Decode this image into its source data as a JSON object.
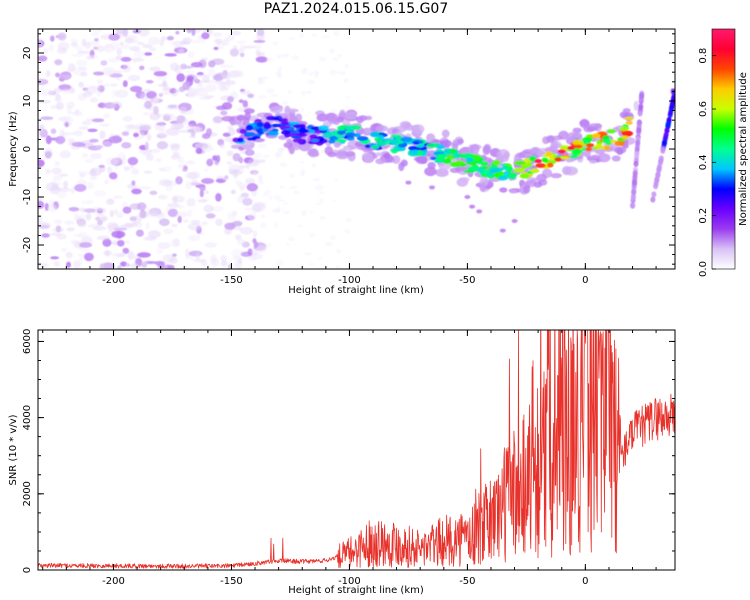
{
  "title": "PAZ1.2024.015.06.15.G07",
  "chart_data": [
    {
      "type": "heatmap",
      "xlabel": "Height of straight line (km)",
      "ylabel": "Frequency (Hz)",
      "xlim": [
        -232,
        38
      ],
      "ylim": [
        -25,
        25
      ],
      "x_ticks": [
        "-200",
        "-150",
        "-100",
        "-50",
        "0"
      ],
      "y_ticks": [
        "20",
        "10",
        "0",
        "-10",
        "-20"
      ],
      "colorbar": {
        "label": "Normalized spectral amplitude",
        "range": [
          0.0,
          0.9
        ],
        "ticks": [
          "0.0",
          "0.2",
          "0.4",
          "0.6",
          "0.8"
        ],
        "colormap": [
          "#ffffff",
          "#d9c2f5",
          "#9b3cf0",
          "#6a00ff",
          "#0000ff",
          "#00c8ff",
          "#00ff90",
          "#00ff00",
          "#c8ff00",
          "#ffcc00",
          "#ff4400",
          "#ff0033",
          "#ff1a6e"
        ]
      },
      "ridge": [
        {
          "x": -150,
          "y": 2
        },
        {
          "x": -140,
          "y": 4
        },
        {
          "x": -130,
          "y": 5
        },
        {
          "x": -120,
          "y": 3
        },
        {
          "x": -110,
          "y": 3
        },
        {
          "x": -100,
          "y": 3
        },
        {
          "x": -90,
          "y": 2
        },
        {
          "x": -80,
          "y": 1
        },
        {
          "x": -70,
          "y": 0
        },
        {
          "x": -60,
          "y": -1
        },
        {
          "x": -50,
          "y": -3
        },
        {
          "x": -40,
          "y": -4
        },
        {
          "x": -30,
          "y": -5
        },
        {
          "x": -20,
          "y": -3
        },
        {
          "x": -10,
          "y": -1
        },
        {
          "x": 0,
          "y": 1
        },
        {
          "x": 10,
          "y": 2
        },
        {
          "x": 15,
          "y": 2
        },
        {
          "x": 20,
          "y": 6
        },
        {
          "x": 22,
          "y": 10
        }
      ]
    },
    {
      "type": "line",
      "xlabel": "Height of straight line (km)",
      "ylabel": "SNR (10 * v/v)",
      "xlim": [
        -232,
        38
      ],
      "ylim": [
        0,
        6300
      ],
      "x_ticks": [
        "-200",
        "-150",
        "-100",
        "-50",
        "0"
      ],
      "y_ticks": [
        "0",
        "2000",
        "4000",
        "6000"
      ],
      "color": "#e8312a",
      "envelope": [
        {
          "x": -232,
          "y": 120
        },
        {
          "x": -200,
          "y": 110
        },
        {
          "x": -170,
          "y": 100
        },
        {
          "x": -150,
          "y": 110
        },
        {
          "x": -140,
          "y": 170
        },
        {
          "x": -130,
          "y": 250
        },
        {
          "x": -120,
          "y": 220
        },
        {
          "x": -110,
          "y": 250
        },
        {
          "x": -100,
          "y": 450
        },
        {
          "x": -90,
          "y": 750
        },
        {
          "x": -80,
          "y": 700
        },
        {
          "x": -70,
          "y": 550
        },
        {
          "x": -60,
          "y": 750
        },
        {
          "x": -50,
          "y": 850
        },
        {
          "x": -40,
          "y": 1300
        },
        {
          "x": -30,
          "y": 2100
        },
        {
          "x": -20,
          "y": 2700
        },
        {
          "x": -10,
          "y": 3200
        },
        {
          "x": 0,
          "y": 3900
        },
        {
          "x": 5,
          "y": 4700
        },
        {
          "x": 10,
          "y": 4200
        },
        {
          "x": 15,
          "y": 2900
        },
        {
          "x": 20,
          "y": 3600
        },
        {
          "x": 25,
          "y": 3800
        },
        {
          "x": 30,
          "y": 4000
        },
        {
          "x": 38,
          "y": 4050
        }
      ]
    }
  ]
}
